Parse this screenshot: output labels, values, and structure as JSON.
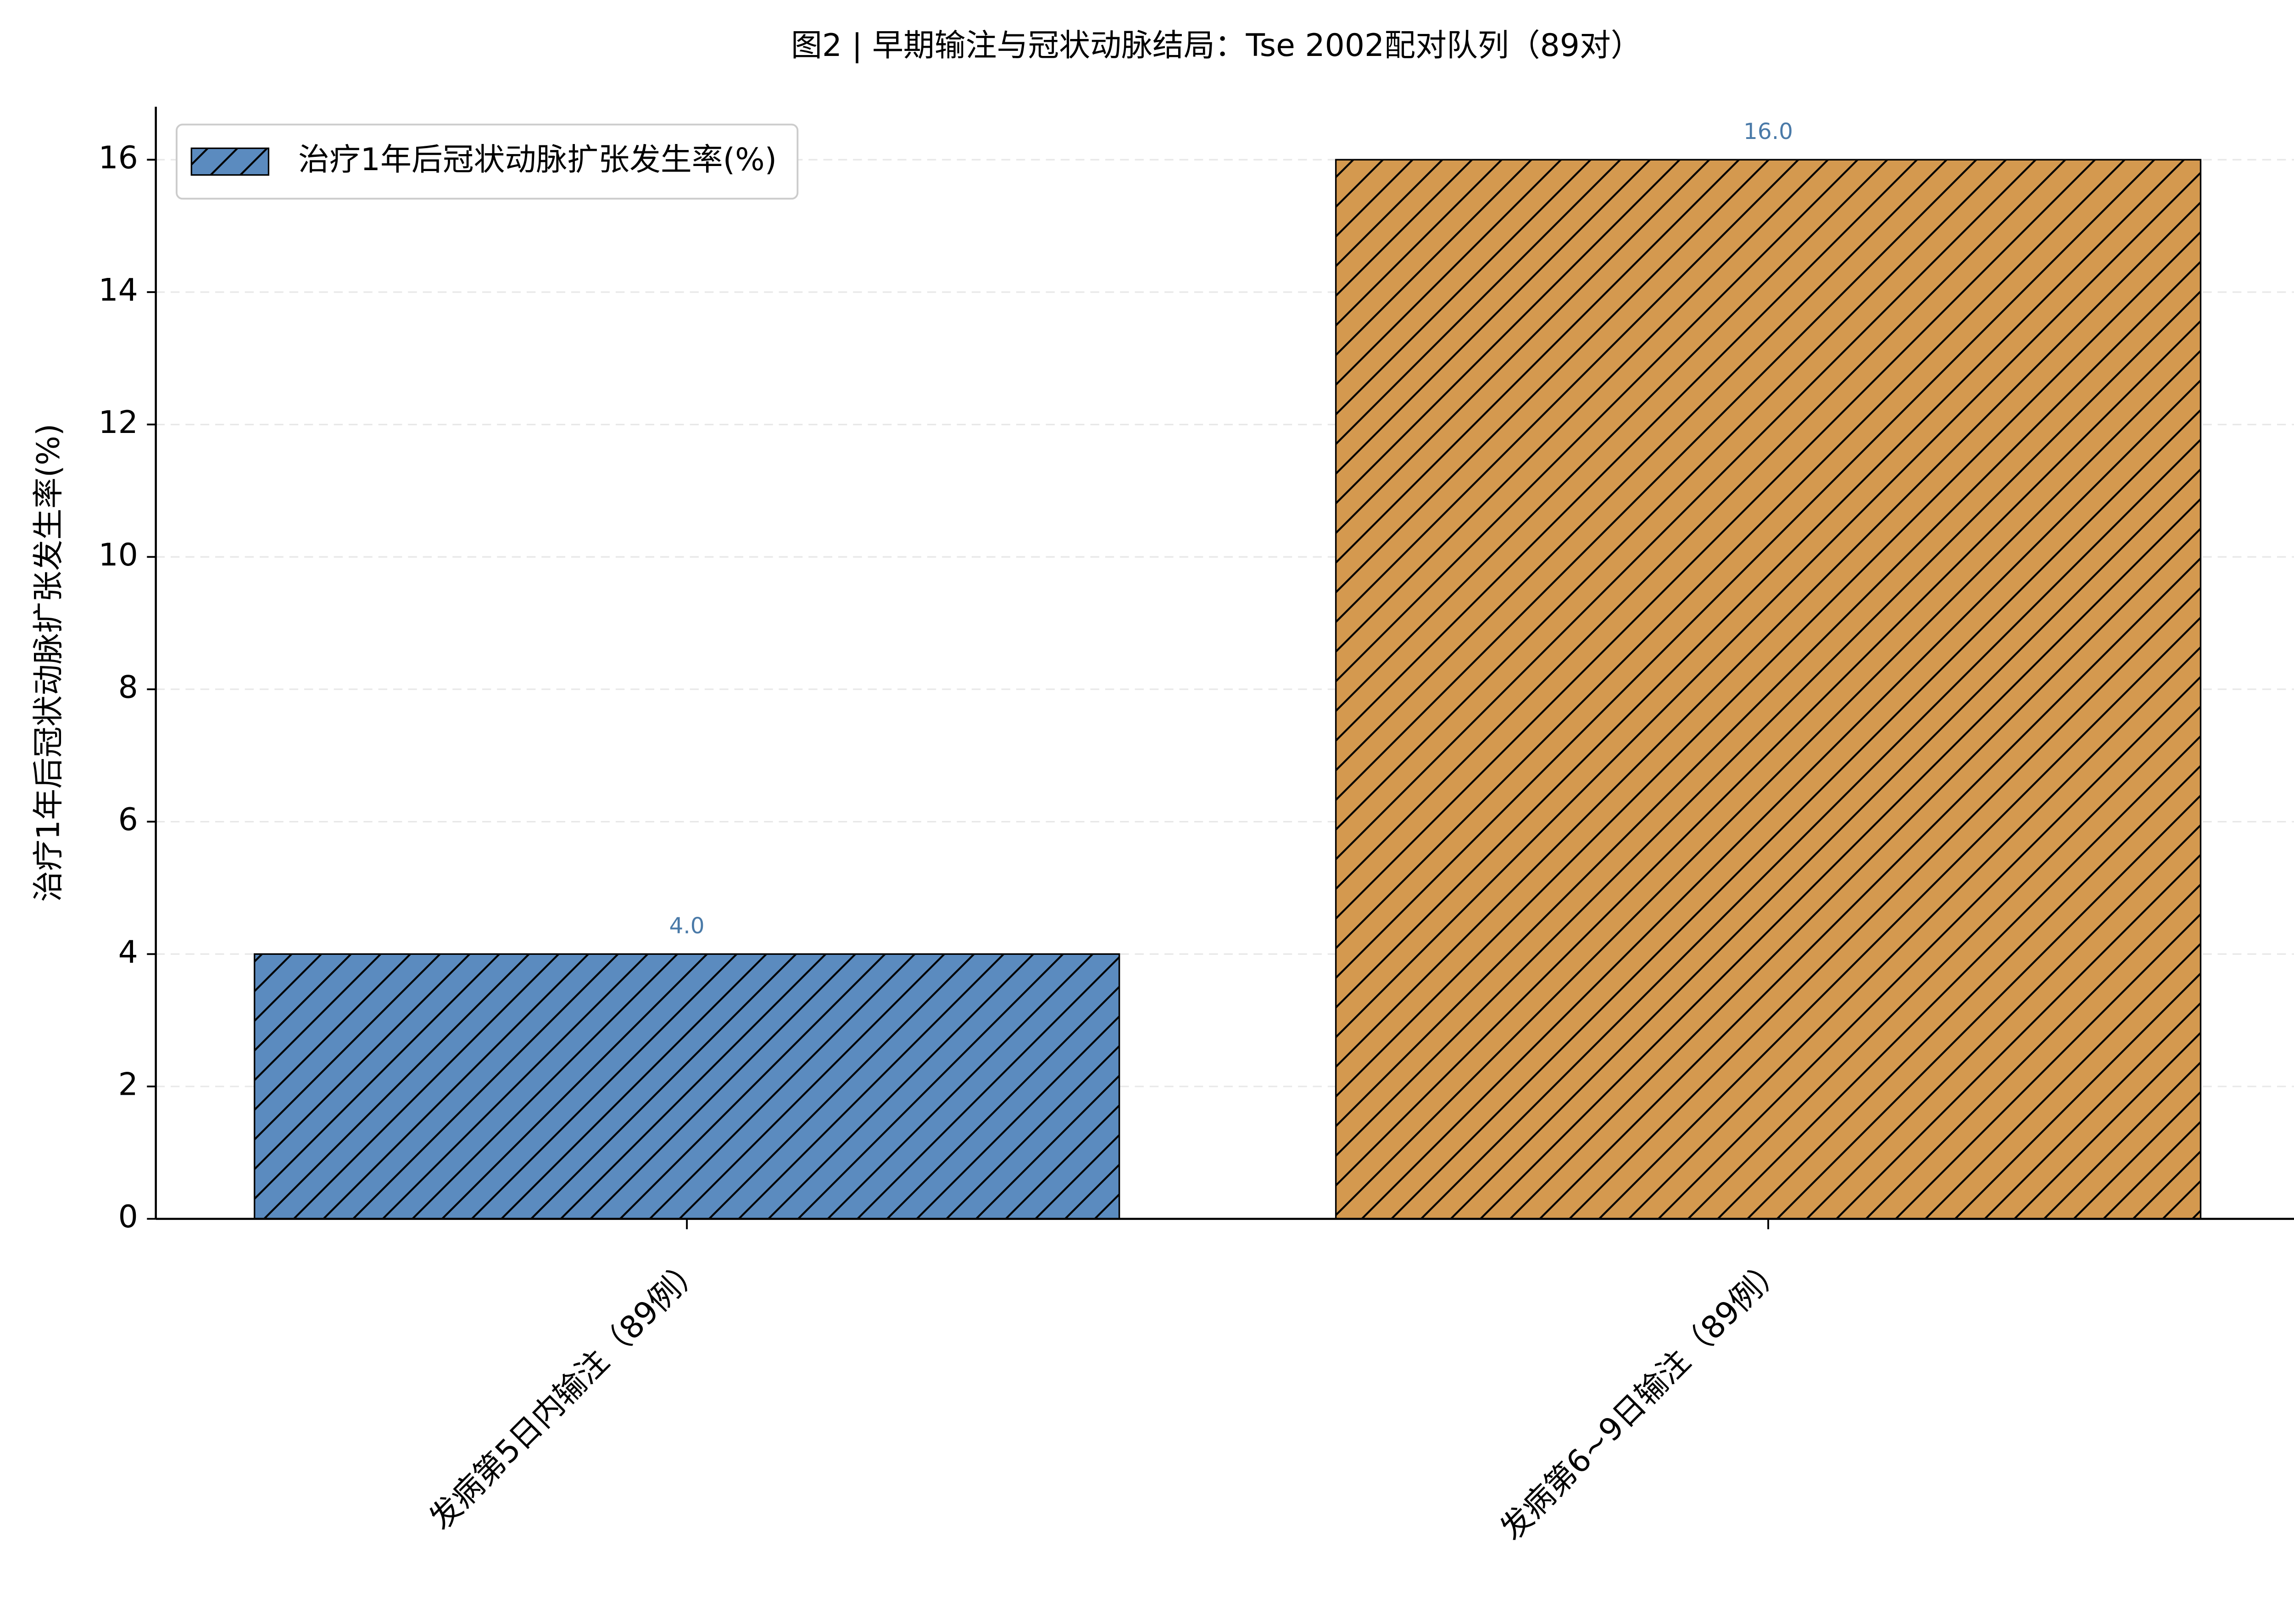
{
  "chart_data": {
    "type": "bar",
    "title": "图2 | 早期输注与冠状动脉结局：Tse 2002配对队列（89对）",
    "y_label": "治疗1年后冠状动脉扩张发生率(%)",
    "categories": [
      "发病第5日内输注（89例）",
      "发病第6~9日输注（89例）"
    ],
    "series": [
      {
        "name": "治疗1年后冠状动脉扩张发生率(%)",
        "colors": [
          "#5b8bbf",
          "#d4994f"
        ],
        "values": [
          4.0,
          16.0
        ],
        "value_labels": [
          "4.0",
          "16.0"
        ]
      }
    ],
    "ylim": [
      0,
      16.8
    ],
    "yticks": [
      0,
      2,
      4,
      6,
      8,
      10,
      12,
      14,
      16
    ],
    "grid": true,
    "hatch": "/",
    "legend": "upper left"
  }
}
